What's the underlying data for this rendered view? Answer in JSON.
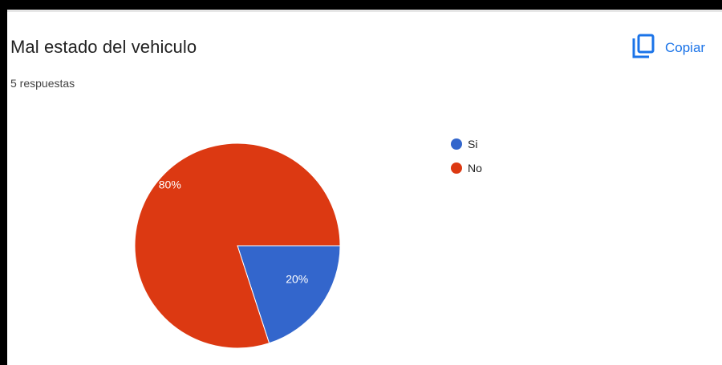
{
  "header": {
    "title": "Mal estado del vehiculo",
    "responses": "5 respuestas",
    "copy_label": "Copiar"
  },
  "chart_data": {
    "type": "pie",
    "title": "Mal estado del vehiculo",
    "categories": [
      "Si",
      "No"
    ],
    "values": [
      20,
      80
    ],
    "labels": [
      "20%",
      "80%"
    ],
    "colors": [
      "#3366cc",
      "#dc3912"
    ],
    "legend_position": "right"
  },
  "icons": {
    "copy": "copy-icon"
  }
}
